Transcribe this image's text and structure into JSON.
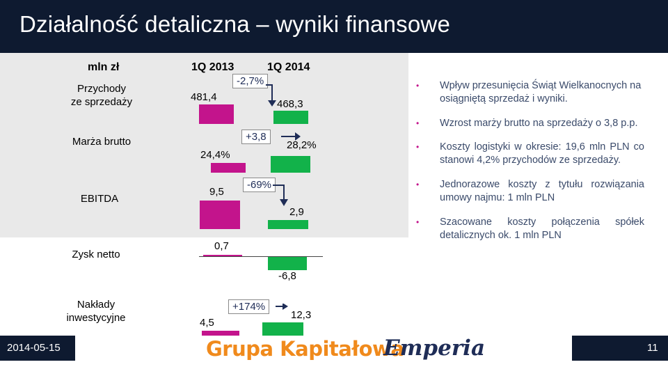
{
  "title": "Działalność detaliczna – wyniki finansowe",
  "header": {
    "unit": "mln zł",
    "col1": "1Q 2013",
    "col2": "1Q 2014"
  },
  "rows": {
    "przychody": {
      "label1": "Przychody",
      "label2": "ze sprzedaży",
      "v2013": "481,4",
      "v2014": "468,3",
      "change": "-2,7%"
    },
    "marza": {
      "label": "Marża brutto",
      "v2013": "24,4%",
      "v2014": "28,2%",
      "change": "+3,8"
    },
    "ebitda": {
      "label": "EBITDA",
      "v2013": "9,5",
      "v2014": "2,9",
      "change": "-69%"
    },
    "zysk": {
      "label": "Zysk netto",
      "v2013": "0,7",
      "v2014": "-6,8"
    },
    "naklady": {
      "label1": "Nakłady",
      "label2": "inwestycyjne",
      "v2013": "4,5",
      "v2014": "12,3",
      "change": "+174%"
    }
  },
  "bullets": [
    "Wpływ przesunięcia Świąt Wielkanocnych na osiągniętą sprzedaż i wyniki.",
    "Wzrost marży brutto na sprzedaży o 3,8 p.p.",
    "Koszty logistyki w okresie: 19,6 mln PLN co stanowi 4,2% przychodów ze sprzedaży.",
    "Jednorazowe koszty z tytułu rozwiązania umowy najmu: 1 mln PLN",
    "Szacowane koszty połączenia spółek detalicznych ok. 1 mln PLN"
  ],
  "footer": {
    "date": "2014-05-15",
    "brand_left": "Grupa Kapitałowa",
    "brand_right": "Emperia",
    "page": "11"
  },
  "colors": {
    "title_bg": "#0e1a30",
    "q2013": "#c3148c",
    "q2014": "#12b24a",
    "bullet": "#c3148c"
  }
}
